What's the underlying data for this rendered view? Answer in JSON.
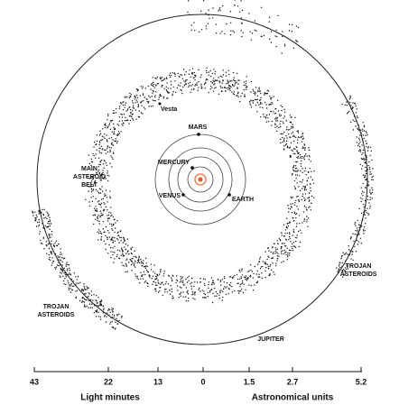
{
  "labels": {
    "vesta": "Vesta",
    "mars": "MARS",
    "mercury": "MERCURY",
    "venus": "VENUS",
    "earth": "EARTH",
    "main_belt": [
      "MAIN",
      "ASTEROID",
      "BELT"
    ],
    "trojans_right": [
      "TROJAN",
      "ASTEROIDS"
    ],
    "trojans_left": [
      "TROJAN",
      "ASTEROIDS"
    ],
    "jupiter": "JUPITER"
  },
  "scale": {
    "ticks": [
      "43",
      "22",
      "13",
      "0",
      "1.5",
      "2.7",
      "5.2"
    ],
    "left_title": "Light minutes",
    "right_title": "Astronomical units"
  }
}
